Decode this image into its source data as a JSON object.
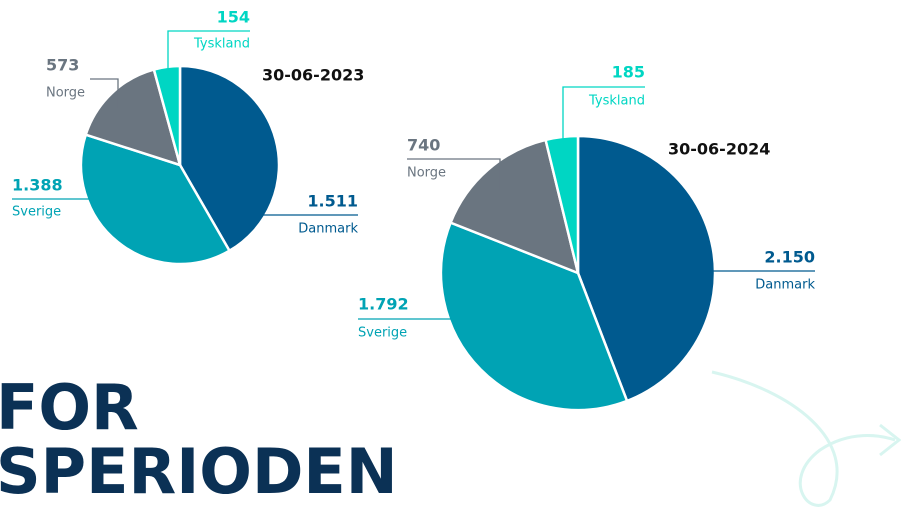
{
  "chart_data": [
    {
      "type": "pie",
      "title": "30-06-2023",
      "categories": [
        "Danmark",
        "Sverige",
        "Norge",
        "Tyskland"
      ],
      "values": [
        1511,
        1388,
        573,
        154
      ],
      "value_labels": [
        "1.511",
        "1.388",
        "573",
        "154"
      ],
      "colors": [
        "#005a8f",
        "#00a3b4",
        "#6a7580",
        "#00d6c3"
      ]
    },
    {
      "type": "pie",
      "title": "30-06-2024",
      "categories": [
        "Danmark",
        "Sverige",
        "Norge",
        "Tyskland"
      ],
      "values": [
        2150,
        1792,
        740,
        185
      ],
      "value_labels": [
        "2.150",
        "1.792",
        "740",
        "185"
      ],
      "colors": [
        "#005a8f",
        "#00a3b4",
        "#6a7580",
        "#00d6c3"
      ]
    }
  ],
  "heading": [
    "FOR",
    "SPERIODEN"
  ]
}
